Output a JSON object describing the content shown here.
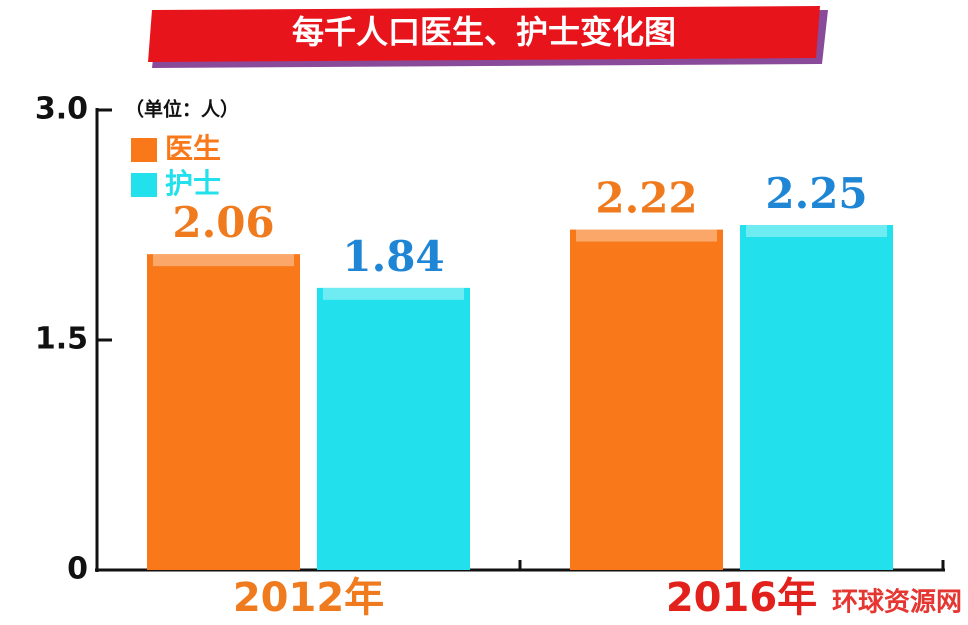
{
  "chart_data": {
    "type": "bar",
    "title": "每千人口医生、护士变化图",
    "unit_label": "（单位：人）",
    "categories": [
      "2012年",
      "2016年"
    ],
    "category_label_colors": [
      "#f07b1e",
      "#e3211c"
    ],
    "series": [
      {
        "name": "医生",
        "color": "#f9781a",
        "label_color": "#f07b1e",
        "values": [
          2.06,
          2.22
        ]
      },
      {
        "name": "护士",
        "color": "#22e0ec",
        "label_color": "#1f86d6",
        "values": [
          1.84,
          2.25
        ]
      }
    ],
    "ylim": [
      0,
      3
    ],
    "yticks": [
      0,
      1.5,
      {
        "value": 3,
        "label": "3.0"
      }
    ],
    "grid": false,
    "watermark": "环球资源网"
  }
}
